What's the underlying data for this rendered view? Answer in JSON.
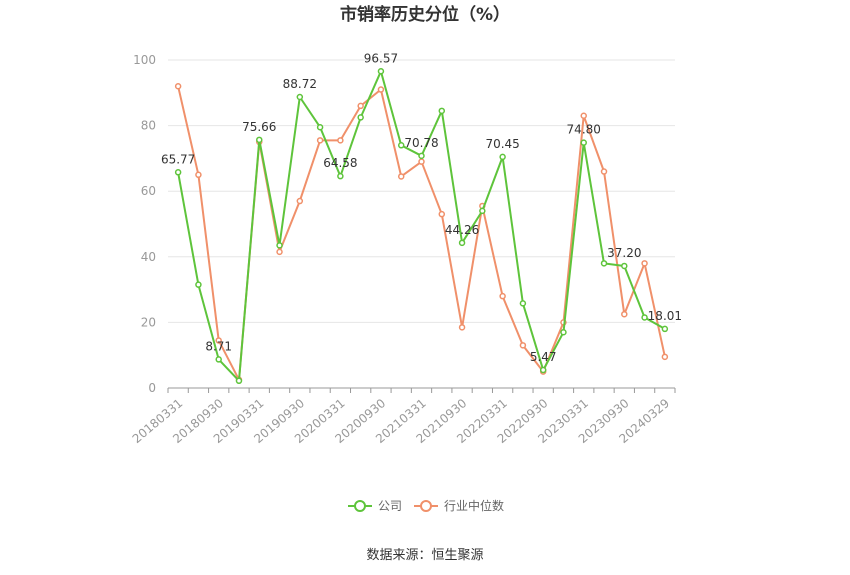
{
  "chart_data": {
    "type": "line",
    "title": "市销率历史分位（%）",
    "xlabel": "",
    "ylabel": "",
    "ylim": [
      0,
      100
    ],
    "yticks": [
      0,
      20,
      40,
      60,
      80,
      100
    ],
    "grid": true,
    "legend_position": "bottom",
    "x": [
      "20180331",
      "20180630",
      "20180930",
      "20181231",
      "20190331",
      "20190630",
      "20190930",
      "20191231",
      "20200331",
      "20200630",
      "20200930",
      "20201231",
      "20210331",
      "20210630",
      "20210930",
      "20211231",
      "20220331",
      "20220630",
      "20220930",
      "20221231",
      "20230331",
      "20230630",
      "20230930",
      "20231231",
      "20240329"
    ],
    "xtick_labels": [
      "20180331",
      "20180930",
      "20190331",
      "20190930",
      "20200331",
      "20200930",
      "20210331",
      "20210930",
      "20220331",
      "20220930",
      "20230331",
      "20230930",
      "20240329"
    ],
    "series": [
      {
        "name": "公司",
        "color": "#5ec43b",
        "values": [
          65.77,
          31.5,
          8.71,
          2.2,
          75.66,
          43.5,
          88.72,
          79.5,
          64.58,
          82.5,
          96.57,
          74.0,
          70.78,
          84.5,
          44.26,
          54.0,
          70.45,
          25.8,
          5.47,
          17.0,
          74.8,
          38.0,
          37.2,
          21.5,
          18.01
        ]
      },
      {
        "name": "行业中位数",
        "color": "#f0906a",
        "values": [
          92.0,
          65.0,
          14.5,
          2.5,
          75.0,
          41.5,
          57.0,
          75.5,
          75.5,
          86.0,
          91.0,
          64.5,
          69.0,
          53.0,
          18.5,
          55.5,
          28.0,
          13.0,
          5.0,
          20.0,
          83.0,
          66.0,
          22.5,
          38.0,
          9.5
        ]
      }
    ],
    "data_labels": [
      {
        "index": 0,
        "text": "65.77"
      },
      {
        "index": 2,
        "text": "8.71"
      },
      {
        "index": 4,
        "text": "75.66"
      },
      {
        "index": 6,
        "text": "88.72"
      },
      {
        "index": 8,
        "text": "64.58"
      },
      {
        "index": 10,
        "text": "96.57"
      },
      {
        "index": 12,
        "text": "70.78"
      },
      {
        "index": 14,
        "text": "44.26"
      },
      {
        "index": 16,
        "text": "70.45"
      },
      {
        "index": 18,
        "text": "5.47"
      },
      {
        "index": 20,
        "text": "74.80"
      },
      {
        "index": 22,
        "text": "37.20"
      },
      {
        "index": 24,
        "text": "18.01"
      }
    ]
  },
  "source": "数据来源：恒生聚源"
}
